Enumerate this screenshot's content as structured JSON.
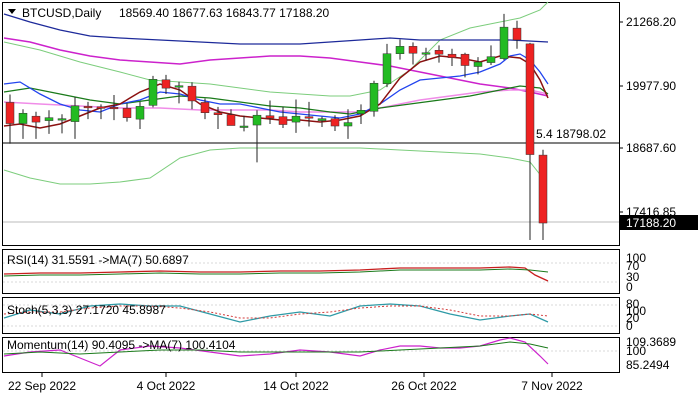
{
  "header": {
    "symbol_label": "BTCUSD,Daily",
    "ohlc_text": "18569.40 18677.63 16843.77 17188.20"
  },
  "price_axis": {
    "ticks": [
      "21268.20",
      "19977.90",
      "18687.60",
      "17416.85"
    ],
    "current_price_label": "17188.20",
    "level_note": "5.4 18798.02"
  },
  "indicators": {
    "rsi": {
      "title": "RSI(14) 31.5591  ->MA(7) 50.6897",
      "ticks": [
        "100",
        "70",
        "30",
        "0"
      ]
    },
    "stoch": {
      "title": "Stoch(5,3,3) 27.1720 45.8987",
      "ticks": [
        "80",
        "100",
        "20",
        "0"
      ]
    },
    "momentum": {
      "title": "Momentum(14) 90.4095  ->MA(7) 100.4104",
      "ticks": [
        "109.3689",
        "100",
        "85.2494"
      ]
    }
  },
  "x_axis": {
    "ticks": [
      "22 Sep 2022",
      "4 Oct 2022",
      "14 Oct 2022",
      "26 Oct 2022",
      "7 Nov 2022"
    ]
  },
  "colors": {
    "bull": "#22bb22",
    "bear": "#ee2222",
    "wick": "#222222",
    "ma_navy": "#1d2a9a",
    "ma_blue": "#2244ee",
    "ma_magenta": "#cc22cc",
    "ma_pink": "#f08ce8",
    "ma_brown": "#8b1010",
    "ma_green": "#1a7a1a",
    "band_green": "#7ccd7c"
  },
  "chart_data": {
    "type": "candlestick",
    "y_range": [
      16843,
      21600
    ],
    "candles": [
      {
        "open": 19640,
        "high": 19800,
        "low": 18800,
        "close": 19210
      },
      {
        "open": 19210,
        "high": 19500,
        "low": 18900,
        "close": 19420
      },
      {
        "open": 19360,
        "high": 19450,
        "low": 18900,
        "close": 19240
      },
      {
        "open": 19270,
        "high": 19480,
        "low": 19000,
        "close": 19330
      },
      {
        "open": 19310,
        "high": 19400,
        "low": 19010,
        "close": 19310
      },
      {
        "open": 19250,
        "high": 19750,
        "low": 18900,
        "close": 19570
      },
      {
        "open": 19560,
        "high": 19650,
        "low": 19300,
        "close": 19550
      },
      {
        "open": 19550,
        "high": 19600,
        "low": 19300,
        "close": 19540
      },
      {
        "open": 19540,
        "high": 19790,
        "low": 19280,
        "close": 19510
      },
      {
        "open": 19520,
        "high": 19620,
        "low": 19250,
        "close": 19330
      },
      {
        "open": 19300,
        "high": 19650,
        "low": 19100,
        "close": 19560
      },
      {
        "open": 19580,
        "high": 20180,
        "low": 19540,
        "close": 20110
      },
      {
        "open": 20100,
        "high": 20200,
        "low": 19810,
        "close": 19930
      },
      {
        "open": 19960,
        "high": 20060,
        "low": 19620,
        "close": 19980
      },
      {
        "open": 19970,
        "high": 20050,
        "low": 19500,
        "close": 19670
      },
      {
        "open": 19640,
        "high": 19720,
        "low": 19300,
        "close": 19430
      },
      {
        "open": 19430,
        "high": 19550,
        "low": 19100,
        "close": 19390
      },
      {
        "open": 19390,
        "high": 19500,
        "low": 19170,
        "close": 19170
      },
      {
        "open": 19150,
        "high": 19370,
        "low": 19050,
        "close": 19160
      },
      {
        "open": 19180,
        "high": 19480,
        "low": 18420,
        "close": 19380
      },
      {
        "open": 19370,
        "high": 19680,
        "low": 19200,
        "close": 19320
      },
      {
        "open": 19350,
        "high": 19550,
        "low": 19120,
        "close": 19190
      },
      {
        "open": 19240,
        "high": 19700,
        "low": 19020,
        "close": 19360
      },
      {
        "open": 19350,
        "high": 19650,
        "low": 19150,
        "close": 19320
      },
      {
        "open": 19270,
        "high": 19350,
        "low": 19140,
        "close": 19310
      },
      {
        "open": 19310,
        "high": 19380,
        "low": 19060,
        "close": 19160
      },
      {
        "open": 19160,
        "high": 19500,
        "low": 18900,
        "close": 19230
      },
      {
        "open": 19410,
        "high": 19600,
        "low": 19200,
        "close": 19480
      },
      {
        "open": 19460,
        "high": 20080,
        "low": 19350,
        "close": 20030
      },
      {
        "open": 20020,
        "high": 20830,
        "low": 19950,
        "close": 20630
      },
      {
        "open": 20630,
        "high": 20920,
        "low": 20510,
        "close": 20780
      },
      {
        "open": 20780,
        "high": 20860,
        "low": 20410,
        "close": 20640
      },
      {
        "open": 20630,
        "high": 20750,
        "low": 20490,
        "close": 20650
      },
      {
        "open": 20700,
        "high": 20800,
        "low": 20450,
        "close": 20620
      },
      {
        "open": 20620,
        "high": 20730,
        "low": 20380,
        "close": 20550
      },
      {
        "open": 20620,
        "high": 20650,
        "low": 20150,
        "close": 20390
      },
      {
        "open": 20370,
        "high": 20560,
        "low": 20210,
        "close": 20460
      },
      {
        "open": 20450,
        "high": 20800,
        "low": 20400,
        "close": 20570
      },
      {
        "open": 20530,
        "high": 21440,
        "low": 20500,
        "close": 21170
      },
      {
        "open": 21150,
        "high": 21300,
        "low": 20730,
        "close": 20910
      },
      {
        "open": 20830,
        "high": 20850,
        "low": 16843,
        "close": 18580
      },
      {
        "open": 18569,
        "high": 18677,
        "low": 16843,
        "close": 17188
      }
    ],
    "annotations": [
      "5.4 18798.02"
    ]
  }
}
